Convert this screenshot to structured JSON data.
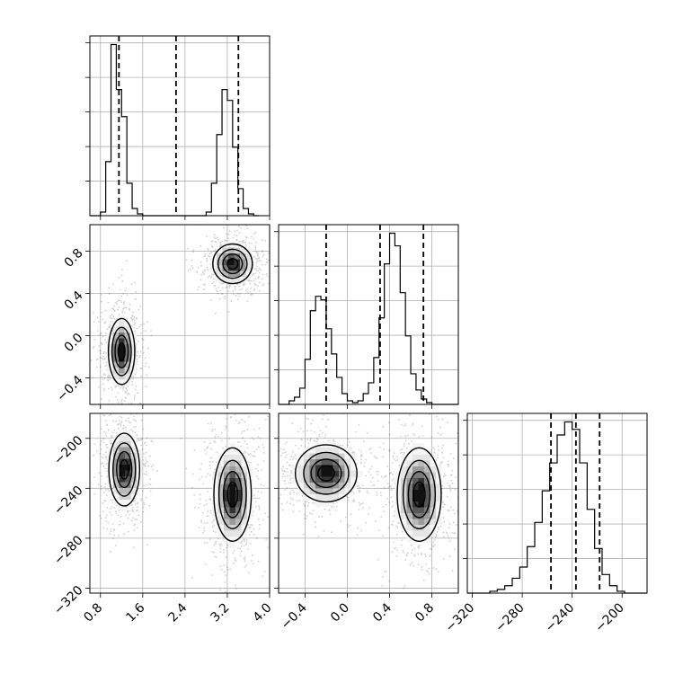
{
  "chart_data": {
    "type": "corner",
    "grid": true,
    "parameters": [
      {
        "range": [
          0.6,
          4.0
        ],
        "ticks": [
          0.8,
          1.6,
          2.4,
          3.2,
          4.0
        ],
        "tick_labels": [
          "0.8",
          "1.6",
          "2.4",
          "3.2",
          "4.0"
        ]
      },
      {
        "range": [
          -0.65,
          1.05
        ],
        "ticks": [
          -0.4,
          0.0,
          0.4,
          0.8
        ],
        "tick_labels": [
          "−0.4",
          "0.0",
          "0.4",
          "0.8"
        ]
      },
      {
        "range": [
          -324,
          -180
        ],
        "ticks": [
          -320,
          -280,
          -240,
          -200
        ],
        "tick_labels": [
          "−320",
          "−280",
          "−240",
          "−200"
        ]
      }
    ],
    "histograms": [
      {
        "param": 0,
        "bin_edges": [
          0.6,
          0.8,
          0.9,
          1.0,
          1.1,
          1.2,
          1.3,
          1.4,
          1.5,
          1.6,
          1.7,
          2.8,
          2.9,
          3.0,
          3.1,
          3.2,
          3.3,
          3.4,
          3.5,
          3.6,
          3.7,
          3.8
        ],
        "counts": [
          0,
          2,
          30,
          95,
          70,
          55,
          18,
          4,
          1,
          0,
          0,
          2,
          18,
          45,
          70,
          64,
          38,
          15,
          4,
          1,
          0
        ],
        "quantiles": [
          1.15,
          2.23,
          3.41
        ]
      },
      {
        "param": 1,
        "bin_edges": [
          -0.65,
          -0.55,
          -0.5,
          -0.45,
          -0.4,
          -0.35,
          -0.3,
          -0.25,
          -0.2,
          -0.15,
          -0.1,
          -0.05,
          0.0,
          0.05,
          0.1,
          0.15,
          0.2,
          0.25,
          0.3,
          0.35,
          0.4,
          0.45,
          0.5,
          0.55,
          0.6,
          0.65,
          0.7,
          0.75,
          0.8,
          0.85,
          0.9,
          0.95,
          1.05
        ],
        "counts": [
          0,
          2,
          4,
          9,
          25,
          52,
          60,
          58,
          42,
          28,
          15,
          6,
          2,
          1,
          2,
          6,
          12,
          26,
          48,
          78,
          95,
          88,
          62,
          38,
          17,
          8,
          3,
          1,
          0,
          0,
          0,
          0
        ],
        "quantiles": [
          -0.2,
          0.31,
          0.72
        ]
      },
      {
        "param": 2,
        "bin_edges": [
          -324,
          -306,
          -300,
          -294,
          -288,
          -282,
          -276,
          -270,
          -264,
          -258,
          -252,
          -246,
          -240,
          -234,
          -228,
          -222,
          -216,
          -210,
          -204,
          -198,
          -192,
          -186,
          -180
        ],
        "counts": [
          0,
          1,
          2,
          4,
          8,
          14,
          25,
          38,
          55,
          70,
          85,
          92,
          88,
          70,
          45,
          24,
          10,
          4,
          1,
          0,
          0,
          0
        ],
        "quantiles": [
          -257,
          -237,
          -218
        ]
      }
    ],
    "pairs": [
      {
        "x_param": 0,
        "y_param": 1,
        "modes": [
          {
            "cx": 1.2,
            "cy": -0.15,
            "sx": 0.12,
            "sy": 0.15
          },
          {
            "cx": 3.3,
            "cy": 0.68,
            "sx": 0.18,
            "sy": 0.09
          }
        ]
      },
      {
        "x_param": 0,
        "y_param": 2,
        "modes": [
          {
            "cx": 1.25,
            "cy": -225,
            "sx": 0.14,
            "sy": 14
          },
          {
            "cx": 3.3,
            "cy": -245,
            "sx": 0.17,
            "sy": 18
          }
        ]
      },
      {
        "x_param": 1,
        "y_param": 2,
        "modes": [
          {
            "cx": -0.2,
            "cy": -228,
            "sx": 0.14,
            "sy": 11
          },
          {
            "cx": 0.68,
            "cy": -245,
            "sx": 0.1,
            "sy": 18
          }
        ]
      }
    ]
  }
}
